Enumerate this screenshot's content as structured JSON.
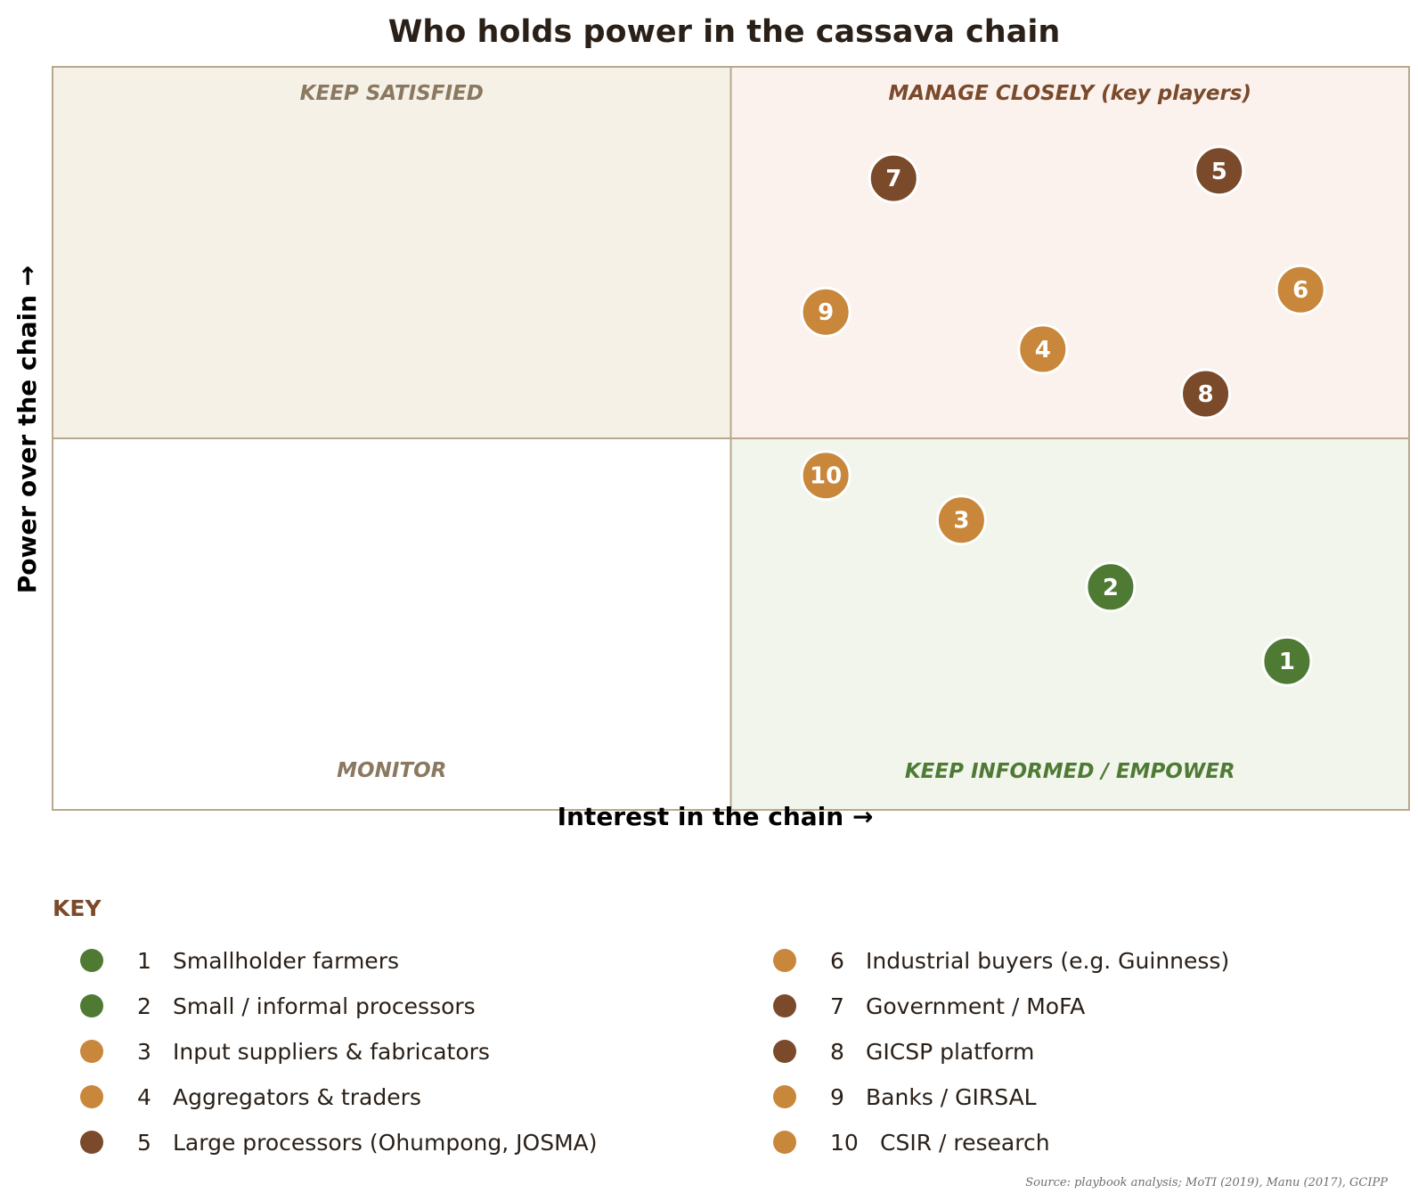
{
  "chart_data": {
    "type": "scatter",
    "title": "Who holds power in the cassava chain",
    "xlabel": "Interest in the chain  →",
    "ylabel": "Power over the chain  →",
    "xlim": [
      0,
      10
    ],
    "ylim": [
      0,
      10
    ],
    "quadrants": {
      "top_left": "KEEP SATISFIED",
      "top_right": "MANAGE CLOSELY (key players)",
      "bottom_left": "MONITOR",
      "bottom_right": "KEEP INFORMED / EMPOWER"
    },
    "quadrant_colors": {
      "top_left_bg": "#f5f1e7",
      "top_right_bg": "#fbf2ee",
      "bottom_left_bg": "#ffffff",
      "bottom_right_bg": "#f1f5ec",
      "top_left_text": "#8a7860",
      "top_right_text": "#7a4a2a",
      "bottom_left_text": "#8a7860",
      "bottom_right_text": "#4e7a34",
      "border": "#b8a88e"
    },
    "points": [
      {
        "id": "1",
        "x": 9.1,
        "y": 2.0,
        "color": "#4e7a34"
      },
      {
        "id": "2",
        "x": 7.8,
        "y": 3.0,
        "color": "#4e7a34"
      },
      {
        "id": "3",
        "x": 6.7,
        "y": 3.9,
        "color": "#c8873a"
      },
      {
        "id": "4",
        "x": 7.3,
        "y": 6.2,
        "color": "#c8873a"
      },
      {
        "id": "5",
        "x": 8.6,
        "y": 8.6,
        "color": "#7a4a2a"
      },
      {
        "id": "6",
        "x": 9.2,
        "y": 7.0,
        "color": "#c8873a"
      },
      {
        "id": "7",
        "x": 6.2,
        "y": 8.5,
        "color": "#7a4a2a"
      },
      {
        "id": "8",
        "x": 8.5,
        "y": 5.6,
        "color": "#7a4a2a"
      },
      {
        "id": "9",
        "x": 5.7,
        "y": 6.7,
        "color": "#c8873a"
      },
      {
        "id": "10",
        "x": 5.7,
        "y": 4.5,
        "color": "#c8873a"
      }
    ]
  },
  "key": {
    "title": "KEY",
    "items": [
      {
        "num": "1",
        "label": "Smallholder farmers",
        "color": "#4e7a34"
      },
      {
        "num": "2",
        "label": "Small / informal processors",
        "color": "#4e7a34"
      },
      {
        "num": "3",
        "label": "Input suppliers & fabricators",
        "color": "#c8873a"
      },
      {
        "num": "4",
        "label": "Aggregators & traders",
        "color": "#c8873a"
      },
      {
        "num": "5",
        "label": "Large processors (Ohumpong, JOSMA)",
        "color": "#7a4a2a"
      },
      {
        "num": "6",
        "label": "Industrial buyers (e.g. Guinness)",
        "color": "#c8873a"
      },
      {
        "num": "7",
        "label": "Government / MoFA",
        "color": "#7a4a2a"
      },
      {
        "num": "8",
        "label": "GICSP platform",
        "color": "#7a4a2a"
      },
      {
        "num": "9",
        "label": "Banks / GIRSAL",
        "color": "#c8873a"
      },
      {
        "num": "10",
        "label": "CSIR / research",
        "color": "#c8873a"
      }
    ]
  },
  "source": "Source: playbook analysis; MoTI (2019), Manu (2017), GCIPP"
}
